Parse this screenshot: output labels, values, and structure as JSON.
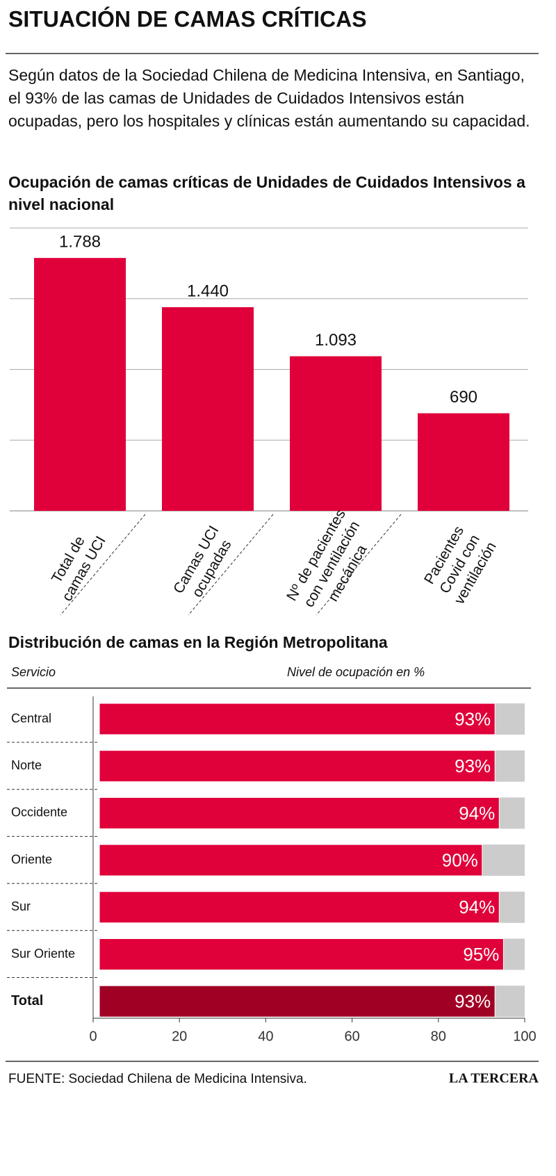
{
  "header": {
    "title": "SITUACIÓN DE CAMAS CRÍTICAS",
    "intro": "Según datos de la Sociedad Chilena de Medicina Intensiva, en Santiago, el 93% de las camas de Unidades de Cuidados Intensivos están ocupadas, pero los hospitales y clínicas están aumentando su capacidad."
  },
  "chart_data": [
    {
      "type": "bar",
      "title": "Ocupación de camas críticas de Unidades de Cuidados Intensivos a nivel nacional",
      "categories": [
        "Total de\ncamas UCI",
        "Camas UCI\nocupadas",
        "Nº de pacientes\ncon ventilación\nmecánica",
        "Pacientes\nCovid con\nventilación"
      ],
      "values": [
        1788,
        1440,
        1093,
        690
      ],
      "value_labels": [
        "1.788",
        "1.440",
        "1.093",
        "690"
      ],
      "color": "#e0003a",
      "ylim": [
        0,
        2000
      ],
      "yticks": [
        0,
        500,
        1000,
        1500,
        2000
      ],
      "grid": true
    },
    {
      "type": "barh",
      "title": "Distribución de camas en la Región Metropolitana",
      "y_label": "Servicio",
      "x_label": "Nivel de ocupación en %",
      "categories": [
        "Central",
        "Norte",
        "Occidente",
        "Oriente",
        "Sur",
        "Sur Oriente",
        "Total"
      ],
      "values": [
        93,
        93,
        94,
        90,
        94,
        95,
        93
      ],
      "value_labels": [
        "93%",
        "93%",
        "94%",
        "90%",
        "94%",
        "95%",
        "93%"
      ],
      "colors": [
        "#e0003a",
        "#e0003a",
        "#e0003a",
        "#e0003a",
        "#e0003a",
        "#e0003a",
        "#a10025"
      ],
      "track_color": "#cccccc",
      "xlim": [
        0,
        100
      ],
      "xticks": [
        0,
        20,
        40,
        60,
        80,
        100
      ]
    }
  ],
  "footer": {
    "source": "FUENTE: Sociedad Chilena de Medicina Intensiva.",
    "brand": "LA TERCERA"
  }
}
